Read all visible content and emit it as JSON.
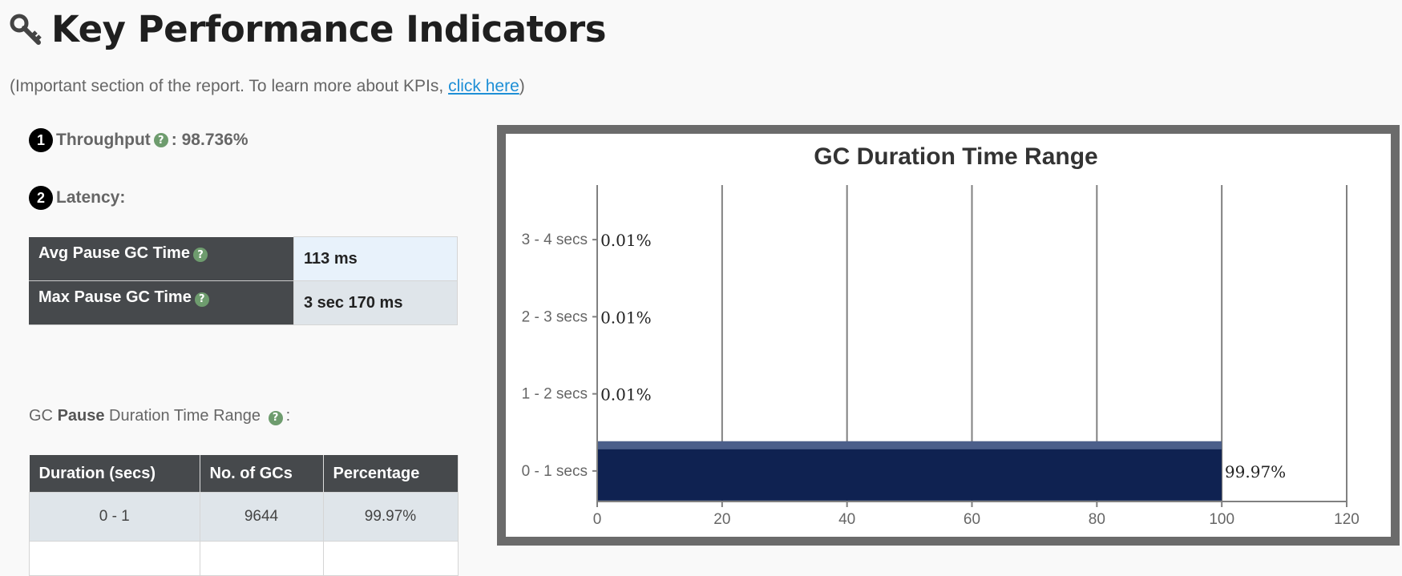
{
  "header": {
    "title": "Key Performance Indicators",
    "subtitle_prefix": "(Important section of the report. To learn more about KPIs, ",
    "subtitle_link": "click here",
    "subtitle_suffix": ")"
  },
  "kpis": {
    "throughput": {
      "number": "1",
      "label": "Throughput",
      "value": " : 98.736%"
    },
    "latency": {
      "number": "2",
      "label": "Latency:"
    }
  },
  "latency_table": [
    {
      "label": "Avg Pause GC Time",
      "value": "113 ms"
    },
    {
      "label": "Max Pause GC Time",
      "value": "3 sec 170 ms"
    }
  ],
  "gc_range_label": {
    "prefix": "GC ",
    "bold": "Pause",
    "suffix": " Duration Time Range",
    "colon": ":"
  },
  "duration_table": {
    "headers": [
      "Duration (secs)",
      "No. of GCs",
      "Percentage"
    ],
    "rows": [
      [
        "0 - 1",
        "9644",
        "99.97%"
      ]
    ]
  },
  "icons": {
    "title": "key-icon",
    "help": "help-icon"
  },
  "colors": {
    "bar": "#0f2251",
    "header_bg": "#46494c",
    "link": "#1e8fd6",
    "help": "#6e9c6e"
  },
  "chart_data": {
    "type": "bar",
    "orientation": "horizontal",
    "title": "GC Duration Time Range",
    "categories": [
      "0 - 1 secs",
      "1 - 2 secs",
      "2 - 3 secs",
      "3 - 4 secs"
    ],
    "values": [
      99.97,
      0.01,
      0.01,
      0.01
    ],
    "value_labels": [
      "99.97%",
      "0.01%",
      "0.01%",
      "0.01%"
    ],
    "xlim": [
      0,
      120
    ],
    "xticks": [
      0,
      20,
      40,
      60,
      80,
      100,
      120
    ],
    "grid": true
  }
}
